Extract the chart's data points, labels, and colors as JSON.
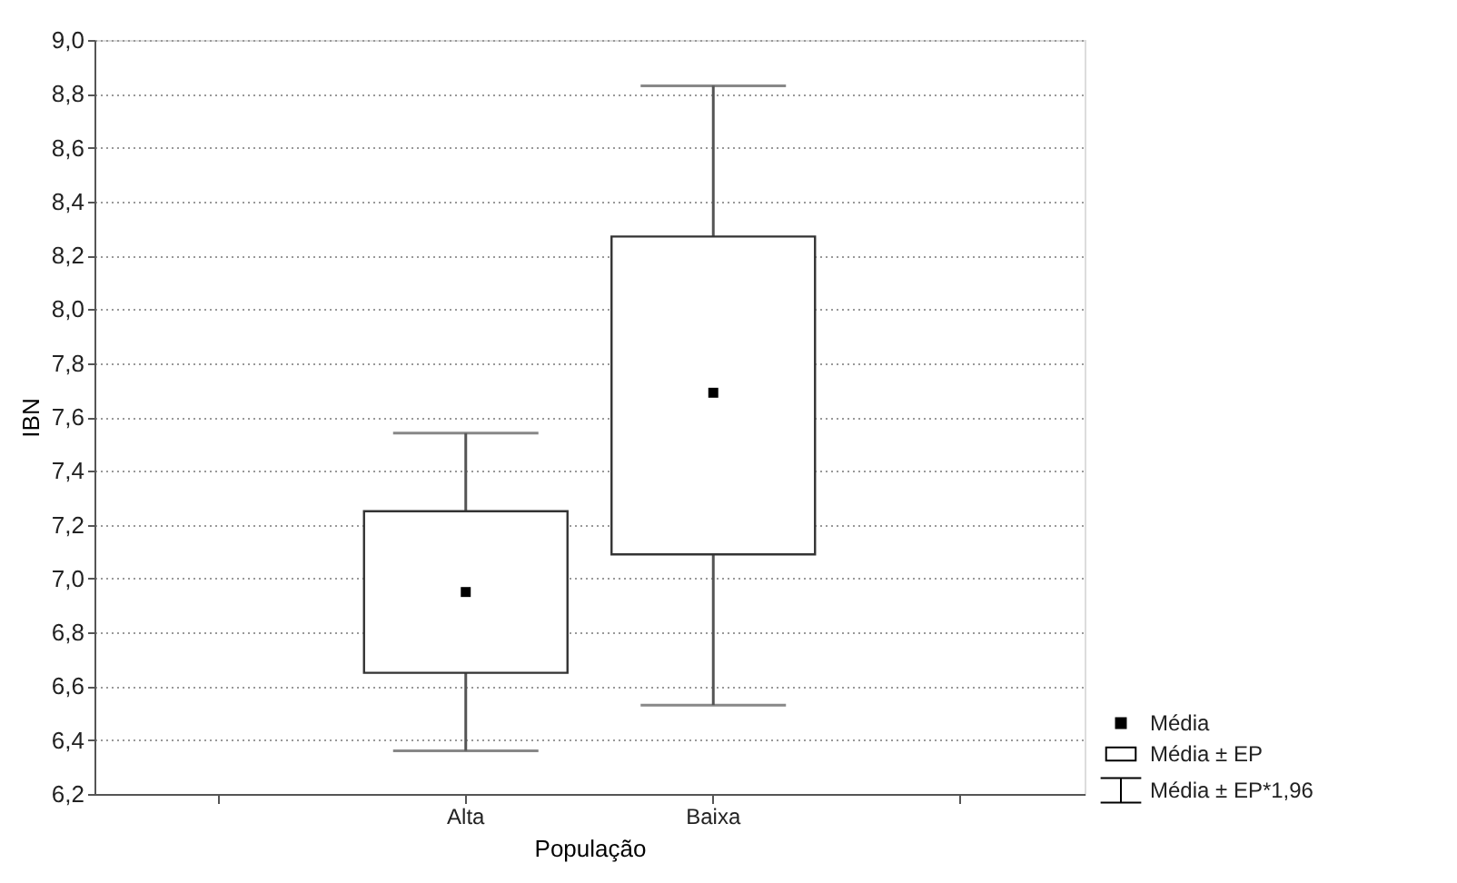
{
  "chart_data": {
    "type": "box",
    "xlabel": "População",
    "ylabel": "IBN",
    "categories": [
      null,
      "Alta",
      "Baixa",
      null
    ],
    "boxes": [
      null,
      {
        "low": 6.36,
        "q1": 6.65,
        "q3": 7.25,
        "high": 7.54
      },
      {
        "low": 6.53,
        "q1": 7.09,
        "q3": 8.27,
        "high": 8.83
      },
      null
    ],
    "series": [
      {
        "name": "Média",
        "type": "scatter",
        "marker": "square",
        "color": "#000000",
        "values": [
          null,
          6.95,
          7.69,
          null
        ]
      }
    ],
    "ylim": [
      6.2,
      9.0
    ],
    "yticks": [
      {
        "value": 6.2,
        "label": "6,2"
      },
      {
        "value": 6.4,
        "label": "6,4"
      },
      {
        "value": 6.6,
        "label": "6,6"
      },
      {
        "value": 6.8,
        "label": "6,8"
      },
      {
        "value": 7.0,
        "label": "7,0"
      },
      {
        "value": 7.2,
        "label": "7,2"
      },
      {
        "value": 7.4,
        "label": "7,4"
      },
      {
        "value": 7.6,
        "label": "7,6"
      },
      {
        "value": 7.8,
        "label": "7,8"
      },
      {
        "value": 8.0,
        "label": "8,0"
      },
      {
        "value": 8.2,
        "label": "8,2"
      },
      {
        "value": 8.4,
        "label": "8,4"
      },
      {
        "value": 8.6,
        "label": "8,6"
      },
      {
        "value": 8.8,
        "label": "8,8"
      },
      {
        "value": 9.0,
        "label": "9,0"
      }
    ],
    "grid": "y",
    "legend": "bottom right",
    "annotations": [
      "Média ± EP",
      "Média ± EP*1,96"
    ]
  }
}
